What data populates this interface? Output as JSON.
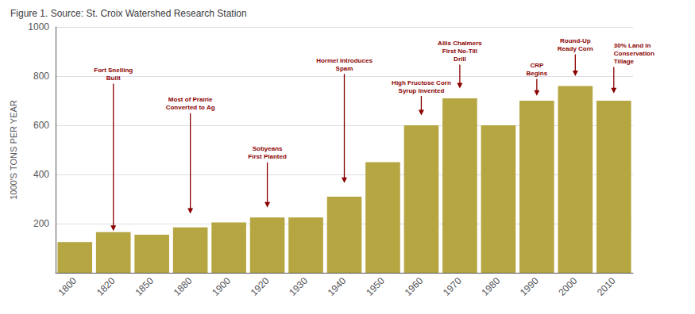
{
  "chart_data": {
    "type": "bar",
    "title": "Figure 1. Source: St. Croix Watershed Research Station",
    "ylabel": "1000'S TONS PER YEAR",
    "categories": [
      "1800",
      "1820",
      "1850",
      "1880",
      "1900",
      "1920",
      "1930",
      "1940",
      "1950",
      "1960",
      "1970",
      "1980",
      "1990",
      "2000",
      "2010"
    ],
    "values": [
      125,
      165,
      155,
      185,
      205,
      225,
      225,
      310,
      450,
      600,
      710,
      600,
      700,
      760,
      700
    ],
    "color": "#b5a642",
    "ylim": [
      0,
      1000
    ],
    "yticks": [
      200,
      400,
      600,
      800,
      1000
    ],
    "grid": true,
    "annotations": [
      {
        "text": "Fort Snelling\nBuilt",
        "x": "1820",
        "y": 170,
        "text_y": 840,
        "color": "#8b0000"
      },
      {
        "text": "Most of Prairie\nConverted to Ag",
        "x": "1880",
        "y": 240,
        "text_y": 720,
        "color": "#8b0000"
      },
      {
        "text": "Sobyeans\nFirst Planted",
        "x": "1920",
        "y": 265,
        "text_y": 520,
        "color": "#8b0000"
      },
      {
        "text": "Hormel Introduces\nSpam",
        "x": "1940",
        "y": 365,
        "text_y": 880,
        "color": "#8b0000"
      },
      {
        "text": "High Fructose Corn\nSyrup Invented",
        "x": "1960",
        "y": 640,
        "text_y": 790,
        "color": "#8b0000"
      },
      {
        "text": "Allis Chalmers\nFirst No-Till\nDrill",
        "x": "1970",
        "y": 750,
        "text_y": 950,
        "color": "#8b0000"
      },
      {
        "text": "CRP\nBegins",
        "x": "1990",
        "y": 720,
        "text_y": 860,
        "color": "#8b0000"
      },
      {
        "text": "Round-Up\nReady Corn",
        "x": "2000",
        "y": 800,
        "text_y": 960,
        "color": "#8b0000"
      },
      {
        "text": "30% Land in\nConservation\nTillage",
        "x": "2010",
        "y": 730,
        "text_y": 940,
        "color": "#8b0000"
      }
    ]
  }
}
